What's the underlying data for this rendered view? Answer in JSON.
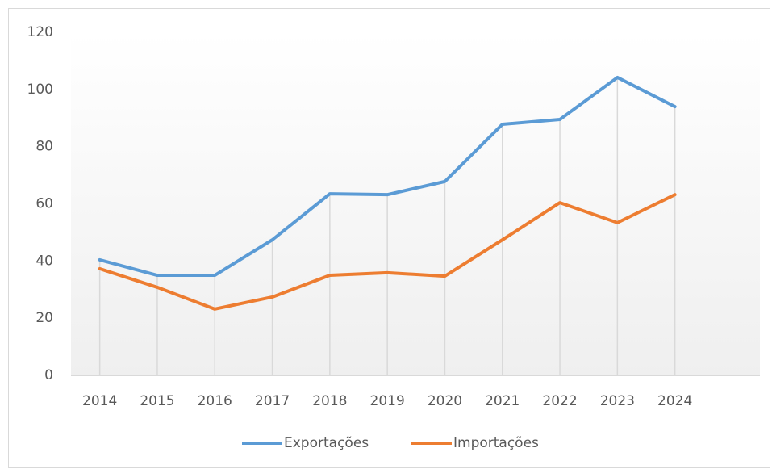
{
  "chart_data": {
    "type": "line",
    "categories": [
      "2014",
      "2015",
      "2016",
      "2017",
      "2018",
      "2019",
      "2020",
      "2021",
      "2022",
      "2023",
      "2024"
    ],
    "series": [
      {
        "name": "Exportações",
        "color": "#5b9bd5",
        "values": [
          40.4,
          35,
          35,
          47.4,
          63.5,
          63.2,
          67.8,
          87.8,
          89.5,
          104.2,
          94
        ]
      },
      {
        "name": "Importações",
        "color": "#ed7d31",
        "values": [
          37.3,
          30.8,
          23.2,
          27.4,
          35,
          35.9,
          34.7,
          47.4,
          60.4,
          53.4,
          63.2
        ]
      }
    ],
    "ylim": [
      0,
      120
    ],
    "yticks": [
      0,
      20,
      40,
      60,
      80,
      100,
      120
    ],
    "drop_lines": true,
    "legend": "bottom"
  }
}
